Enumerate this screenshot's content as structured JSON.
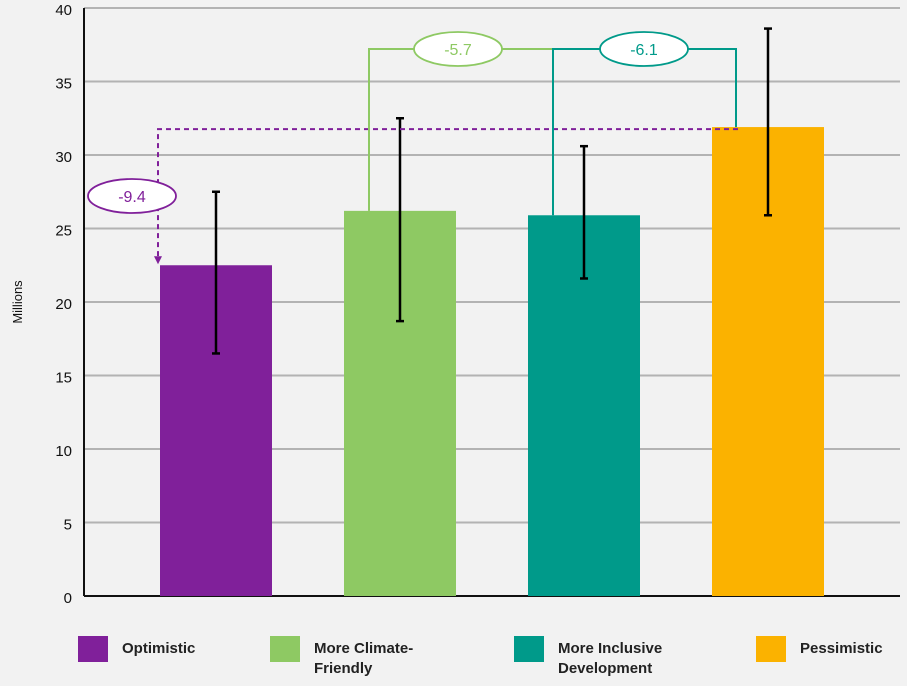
{
  "chart_data": {
    "type": "bar",
    "ylabel": "Millions",
    "ylim": [
      0,
      40
    ],
    "yticks": [
      0,
      5,
      10,
      15,
      20,
      25,
      30,
      35,
      40
    ],
    "grid": true,
    "legend_position": "bottom",
    "categories": [
      "Optimistic",
      "More Climate-\nFriendly",
      "More Inclusive\nDevelopment",
      "Pessimistic"
    ],
    "values": [
      22.5,
      26.2,
      25.9,
      31.9
    ],
    "error_low": [
      16.5,
      18.7,
      21.6,
      25.9
    ],
    "error_high": [
      27.5,
      32.5,
      30.6,
      38.6
    ],
    "colors": [
      "#80209a",
      "#8ec963",
      "#009a8a",
      "#fbb200"
    ],
    "annotations": [
      {
        "label": "-9.4",
        "from": "Pessimistic",
        "to": "Optimistic",
        "color": "#80209a",
        "style": "dashed"
      },
      {
        "label": "-5.7",
        "from": "Pessimistic",
        "to": "More Climate-\nFriendly",
        "color": "#8ec963",
        "style": "bracket"
      },
      {
        "label": "-6.1",
        "from": "Pessimistic",
        "to": "More Inclusive\nDevelopment",
        "color": "#009a8a",
        "style": "bracket"
      }
    ]
  }
}
